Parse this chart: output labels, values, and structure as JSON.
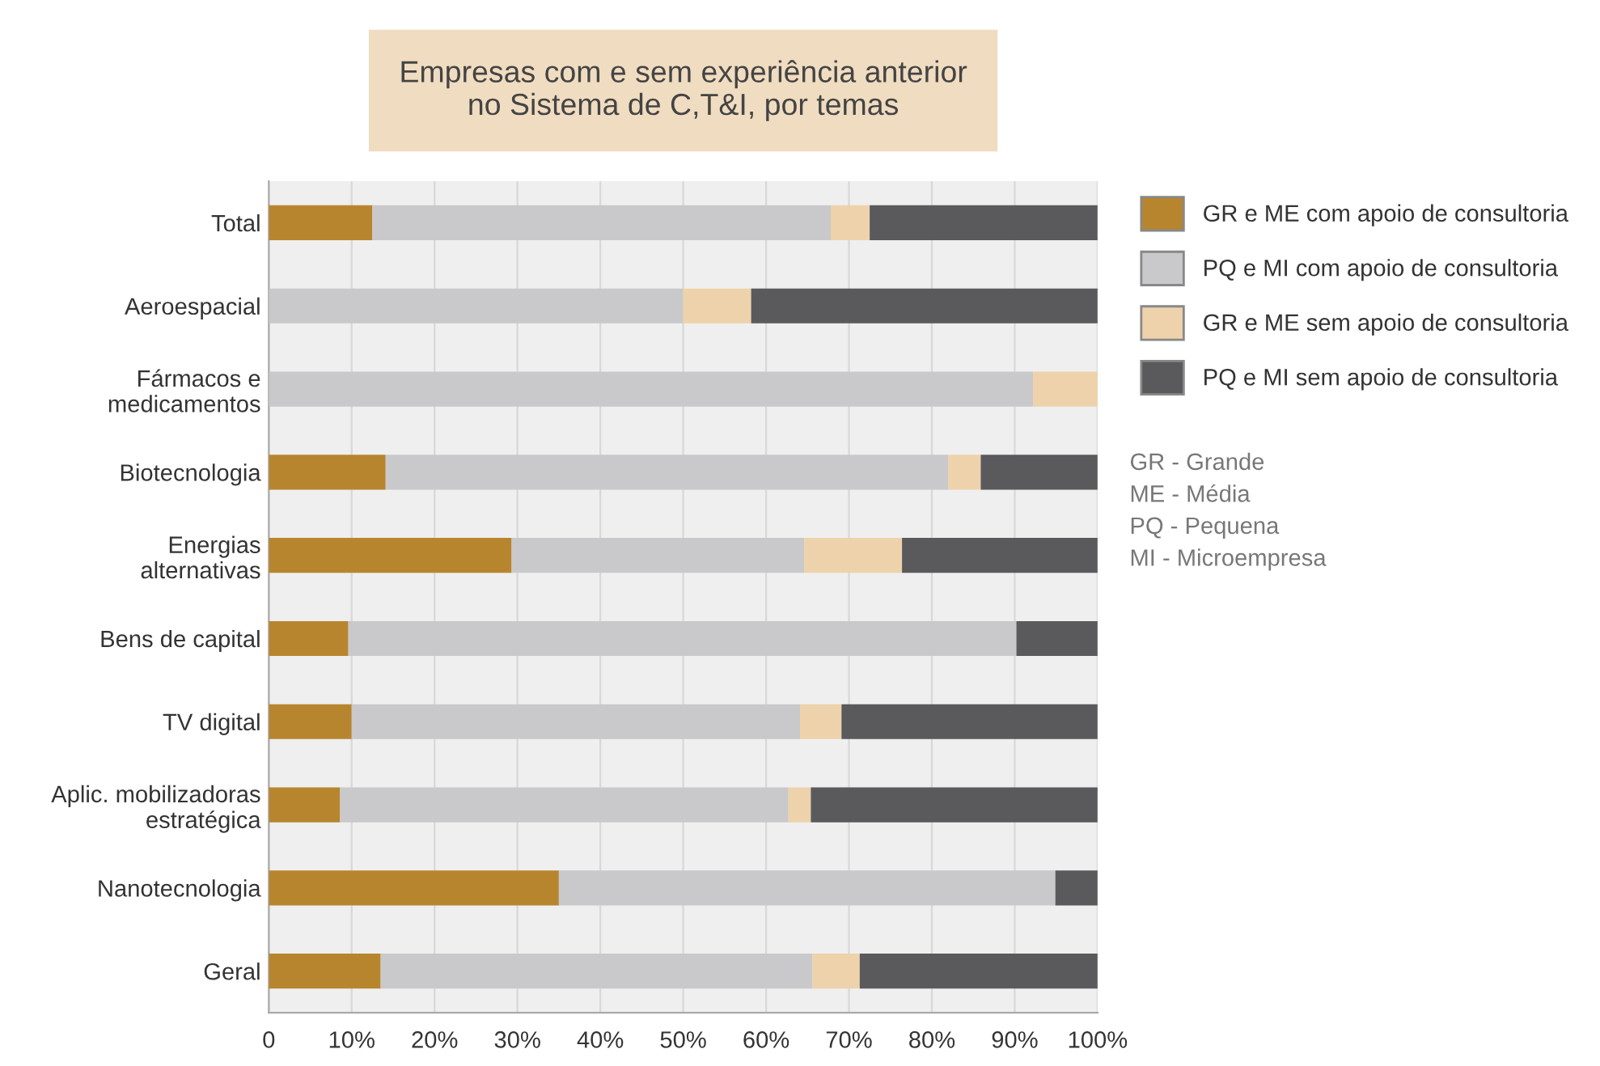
{
  "chart_data": {
    "type": "bar",
    "orientation": "horizontal",
    "stacked": true,
    "title": "Empresas com e sem experiência anterior\nno Sistema de C,T&I, por temas",
    "categories": [
      "Total",
      "Aeroespacial",
      "Fármacos e\nmedicamentos",
      "Biotecnologia",
      "Energias\nalternativas",
      "Bens de capital",
      "TV digital",
      "Aplic. mobilizadoras\nestratégica",
      "Nanotecnologia",
      "Geral"
    ],
    "series": [
      {
        "name": "GR e ME com apoio de consultoria",
        "color": "#b8852f",
        "values": [
          12.5,
          0,
          0,
          14.1,
          29.3,
          9.6,
          10.0,
          8.6,
          35.0,
          13.5
        ]
      },
      {
        "name": "PQ e MI com apoio de consultoria",
        "color": "#c9c9cb",
        "values": [
          55.3,
          50.0,
          92.2,
          67.9,
          35.3,
          80.6,
          54.1,
          54.1,
          59.9,
          52.1
        ]
      },
      {
        "name": "GR e ME sem apoio de consultoria",
        "color": "#edd2ab",
        "values": [
          4.7,
          8.2,
          7.8,
          3.9,
          11.8,
          0,
          5.0,
          2.7,
          0,
          5.7
        ]
      },
      {
        "name": "PQ e MI sem apoio de consultoria",
        "color": "#5a5a5c",
        "values": [
          27.5,
          41.8,
          0,
          14.1,
          23.6,
          9.8,
          30.9,
          34.6,
          5.1,
          28.7
        ]
      }
    ],
    "xlim": [
      0,
      100
    ],
    "xticks": [
      0,
      {
        "value": 10,
        "label": "10%"
      },
      {
        "value": 20,
        "label": "20%"
      },
      {
        "value": 30,
        "label": "30%"
      },
      {
        "value": 40,
        "label": "40%"
      },
      {
        "value": 50,
        "label": "50%"
      },
      {
        "value": 60,
        "label": "60%"
      },
      {
        "value": 70,
        "label": "70%"
      },
      {
        "value": 80,
        "label": "80%"
      },
      {
        "value": 90,
        "label": "90%"
      },
      {
        "value": 100,
        "label": "100%"
      }
    ],
    "grid": "x",
    "legend": "right",
    "annotations": [
      "GR - Grande",
      "ME - Média",
      "PQ - Pequena",
      "MI - Microempresa"
    ]
  }
}
